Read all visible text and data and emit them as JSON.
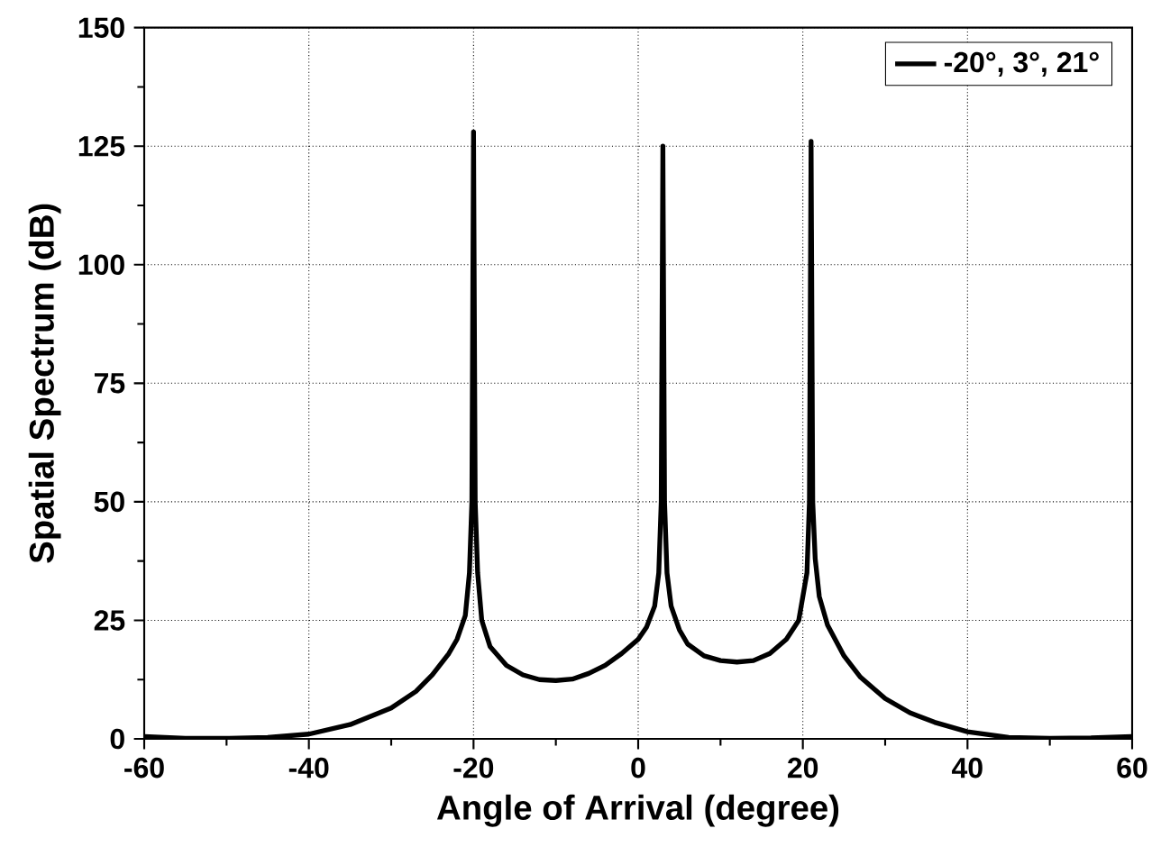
{
  "chart_data": {
    "type": "line",
    "xlabel": "Angle of Arrival (degree)",
    "ylabel": "Spatial Spectrum (dB)",
    "xlim": [
      -60,
      60
    ],
    "ylim": [
      0,
      150
    ],
    "xticks": [
      -60,
      -40,
      -20,
      0,
      20,
      40,
      60
    ],
    "yticks": [
      0,
      25,
      50,
      75,
      100,
      125,
      150
    ],
    "grid": true,
    "legend": "top right",
    "line_style": "solid",
    "marker": "none",
    "series": [
      {
        "name": "-20°, 3°, 21°",
        "color": "#000000",
        "x": [
          -60,
          -55,
          -50,
          -45,
          -40,
          -35,
          -30,
          -27,
          -25,
          -23,
          -22,
          -21,
          -20.5,
          -20.2,
          -20,
          -19.8,
          -19.5,
          -19,
          -18,
          -16,
          -14,
          -12,
          -10,
          -8,
          -6,
          -4,
          -2,
          0,
          1,
          2,
          2.5,
          2.8,
          3,
          3.2,
          3.5,
          4,
          5,
          6,
          8,
          10,
          12,
          14,
          16,
          18,
          19.5,
          20.5,
          20.8,
          21,
          21.2,
          21.5,
          22,
          23,
          25,
          27,
          30,
          33,
          36,
          40,
          45,
          50,
          55,
          60
        ],
        "values": [
          0.5,
          0.1,
          0.1,
          0.3,
          1,
          3,
          6.5,
          10,
          13.5,
          18,
          21,
          26,
          35,
          50,
          128,
          50,
          35,
          25,
          19.5,
          15.5,
          13.5,
          12.5,
          12.3,
          12.6,
          13.8,
          15.5,
          18,
          21,
          23.5,
          28,
          35,
          50,
          125,
          50,
          35,
          28,
          23,
          20,
          17.5,
          16.5,
          16.2,
          16.5,
          18,
          21,
          25,
          35,
          50,
          126,
          50,
          38,
          30,
          24,
          17.5,
          13,
          8.5,
          5.5,
          3.5,
          1.5,
          0.3,
          0.1,
          0.2,
          0.5
        ]
      }
    ]
  }
}
